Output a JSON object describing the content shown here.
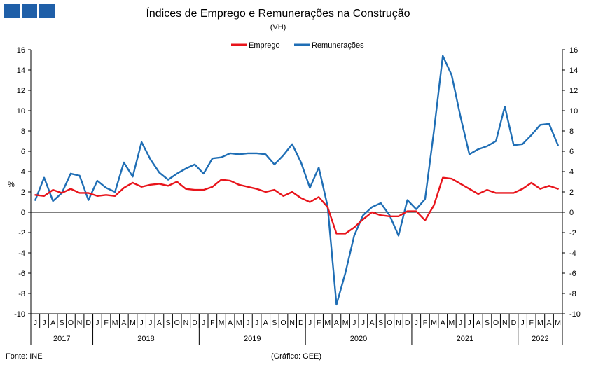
{
  "header": {
    "logo_color": "#1f5fa8"
  },
  "footer": {
    "source": "Fonte: INE",
    "credit": "(Gráfico: GEE)"
  },
  "chart_data": {
    "type": "line",
    "title": "Índices de Emprego e Remunerações na Construção",
    "subtitle": "(VH)",
    "ylabel": "%",
    "ylim": [
      -10,
      16
    ],
    "yticks": [
      -10,
      -8,
      -6,
      -4,
      -2,
      0,
      2,
      4,
      6,
      8,
      10,
      12,
      14,
      16
    ],
    "dual_axis": true,
    "grid": false,
    "legend_position": "top-center",
    "months": [
      "J",
      "J",
      "A",
      "S",
      "O",
      "N",
      "D",
      "J",
      "F",
      "M",
      "A",
      "M",
      "J",
      "J",
      "A",
      "S",
      "O",
      "N",
      "D",
      "J",
      "F",
      "M",
      "A",
      "M",
      "J",
      "J",
      "A",
      "S",
      "O",
      "N",
      "D",
      "J",
      "F",
      "M",
      "A",
      "M",
      "J",
      "J",
      "A",
      "S",
      "O",
      "N",
      "D",
      "J",
      "F",
      "M",
      "A",
      "M",
      "J",
      "J",
      "A",
      "S",
      "O",
      "N",
      "D",
      "J",
      "F",
      "M",
      "A",
      "M"
    ],
    "years": [
      {
        "label": "2017",
        "start": 0,
        "count": 7
      },
      {
        "label": "2018",
        "start": 7,
        "count": 12
      },
      {
        "label": "2019",
        "start": 19,
        "count": 12
      },
      {
        "label": "2020",
        "start": 31,
        "count": 12
      },
      {
        "label": "2021",
        "start": 43,
        "count": 12
      },
      {
        "label": "2022",
        "start": 55,
        "count": 5
      }
    ],
    "series": [
      {
        "name": "Emprego",
        "color": "#e8141b",
        "values": [
          1.7,
          1.6,
          2.2,
          1.9,
          2.3,
          1.9,
          1.9,
          1.6,
          1.7,
          1.6,
          2.4,
          2.9,
          2.5,
          2.7,
          2.8,
          2.6,
          3.0,
          2.3,
          2.2,
          2.2,
          2.5,
          3.2,
          3.1,
          2.7,
          2.5,
          2.3,
          2.0,
          2.2,
          1.6,
          2.0,
          1.4,
          1.0,
          1.5,
          0.5,
          -2.1,
          -2.1,
          -1.5,
          -0.7,
          0.0,
          -0.3,
          -0.4,
          -0.4,
          0.1,
          0.1,
          -0.8,
          0.7,
          3.4,
          3.3,
          2.8,
          2.3,
          1.8,
          2.2,
          1.9,
          1.9,
          1.9,
          2.3,
          2.9,
          2.3,
          2.6,
          2.3
        ]
      },
      {
        "name": "Remunerações",
        "color": "#1f6eb5",
        "values": [
          1.2,
          3.4,
          1.1,
          1.9,
          3.8,
          3.6,
          1.2,
          3.1,
          2.4,
          2.0,
          4.9,
          3.5,
          6.9,
          5.2,
          3.9,
          3.2,
          3.8,
          4.3,
          4.7,
          3.8,
          5.3,
          5.4,
          5.8,
          5.7,
          5.8,
          5.8,
          5.7,
          4.7,
          5.6,
          6.7,
          4.9,
          2.4,
          4.4,
          0.6,
          -9.1,
          -6.0,
          -2.3,
          -0.3,
          0.5,
          0.9,
          -0.3,
          -2.3,
          1.2,
          0.3,
          1.3,
          8.0,
          15.4,
          13.5,
          9.4,
          5.7,
          6.2,
          6.5,
          7.0,
          10.4,
          6.6,
          6.7,
          7.6,
          8.6,
          8.7,
          6.6
        ]
      }
    ]
  }
}
